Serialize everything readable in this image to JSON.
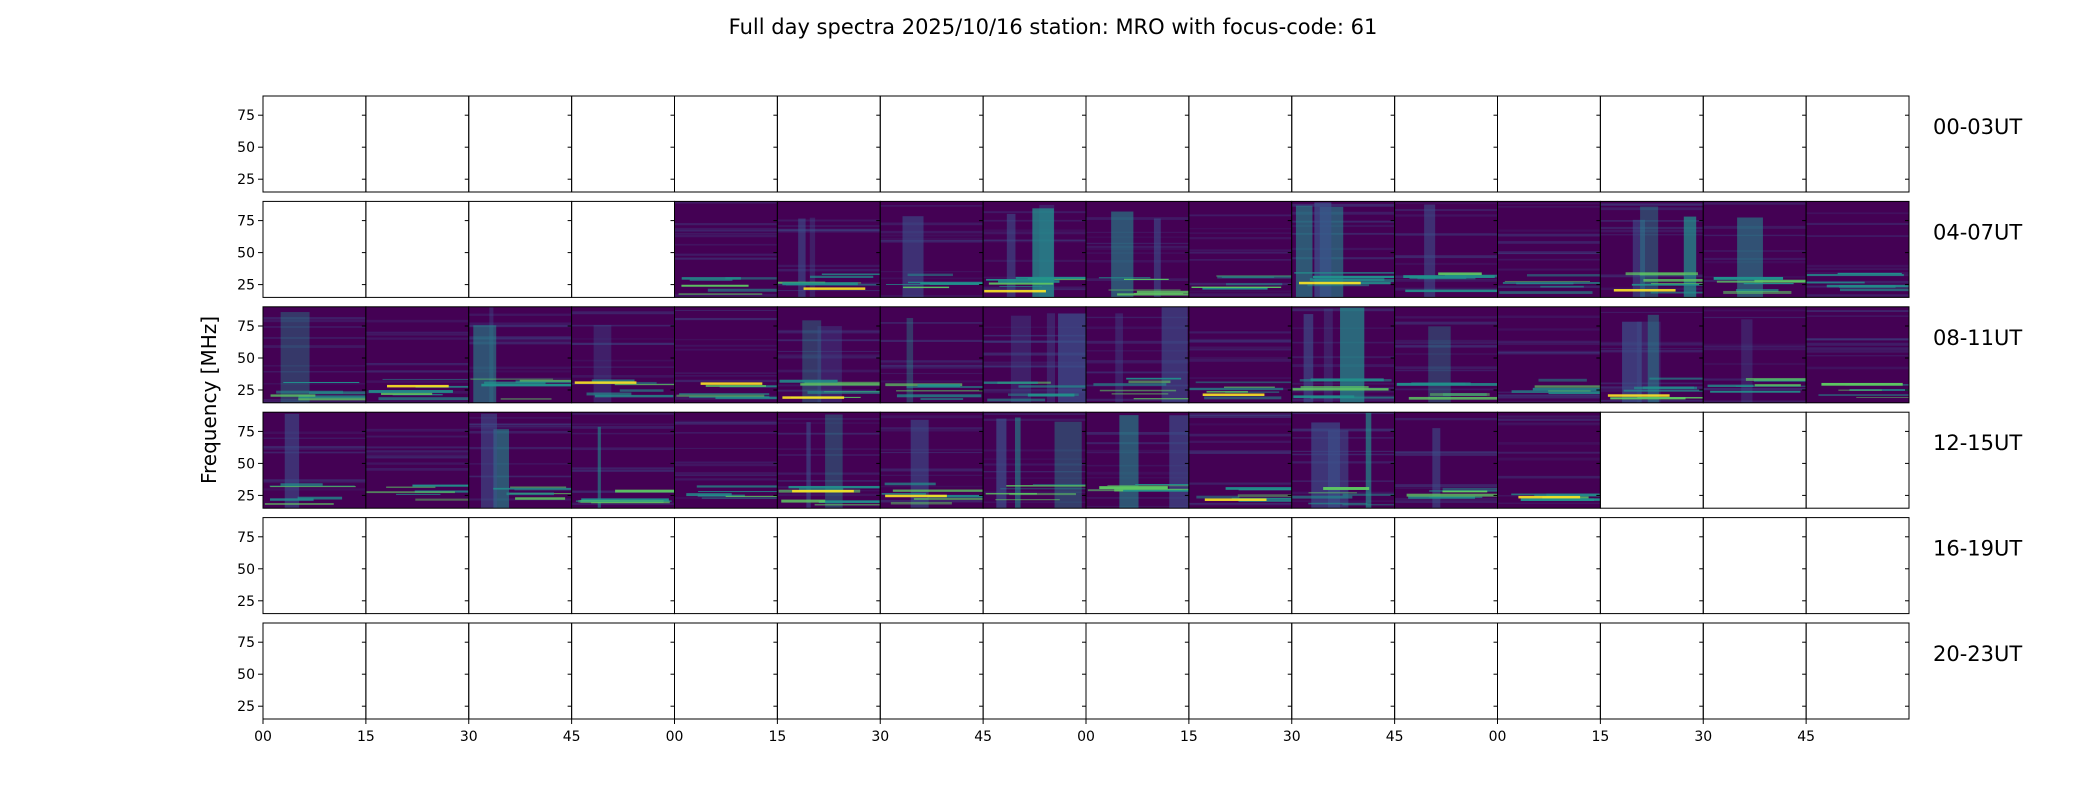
{
  "chart_data": {
    "type": "heatmap",
    "title": "Full day spectra 2025/10/16 station: MRO with focus-code: 61",
    "ylabel": "Frequency [MHz]",
    "yticks": [
      25,
      50,
      75
    ],
    "ylim": [
      15,
      90
    ],
    "xticks": [
      "00",
      "15",
      "30",
      "45",
      "00",
      "15",
      "30",
      "45",
      "00",
      "15",
      "30",
      "45",
      "00",
      "15",
      "30",
      "45"
    ],
    "panels_per_row": 16,
    "minutes_per_panel": 15,
    "colormap": [
      "#440154",
      "#3b528b",
      "#21918c",
      "#5ec962",
      "#fde725"
    ],
    "rows": [
      {
        "label": "00-03UT",
        "has_data": [
          0,
          0,
          0,
          0,
          0,
          0,
          0,
          0,
          0,
          0,
          0,
          0,
          0,
          0,
          0,
          0
        ]
      },
      {
        "label": "04-07UT",
        "has_data": [
          0,
          0,
          0,
          0,
          1,
          1,
          1,
          1,
          1,
          1,
          1,
          1,
          1,
          1,
          1,
          1
        ]
      },
      {
        "label": "08-11UT",
        "has_data": [
          1,
          1,
          1,
          1,
          1,
          1,
          1,
          1,
          1,
          1,
          1,
          1,
          1,
          1,
          1,
          1
        ]
      },
      {
        "label": "12-15UT",
        "has_data": [
          1,
          1,
          1,
          1,
          1,
          1,
          1,
          1,
          1,
          1,
          1,
          1,
          1,
          0,
          0,
          0
        ]
      },
      {
        "label": "16-19UT",
        "has_data": [
          0,
          0,
          0,
          0,
          0,
          0,
          0,
          0,
          0,
          0,
          0,
          0,
          0,
          0,
          0,
          0
        ]
      },
      {
        "label": "20-23UT",
        "has_data": [
          0,
          0,
          0,
          0,
          0,
          0,
          0,
          0,
          0,
          0,
          0,
          0,
          0,
          0,
          0,
          0
        ]
      }
    ]
  }
}
